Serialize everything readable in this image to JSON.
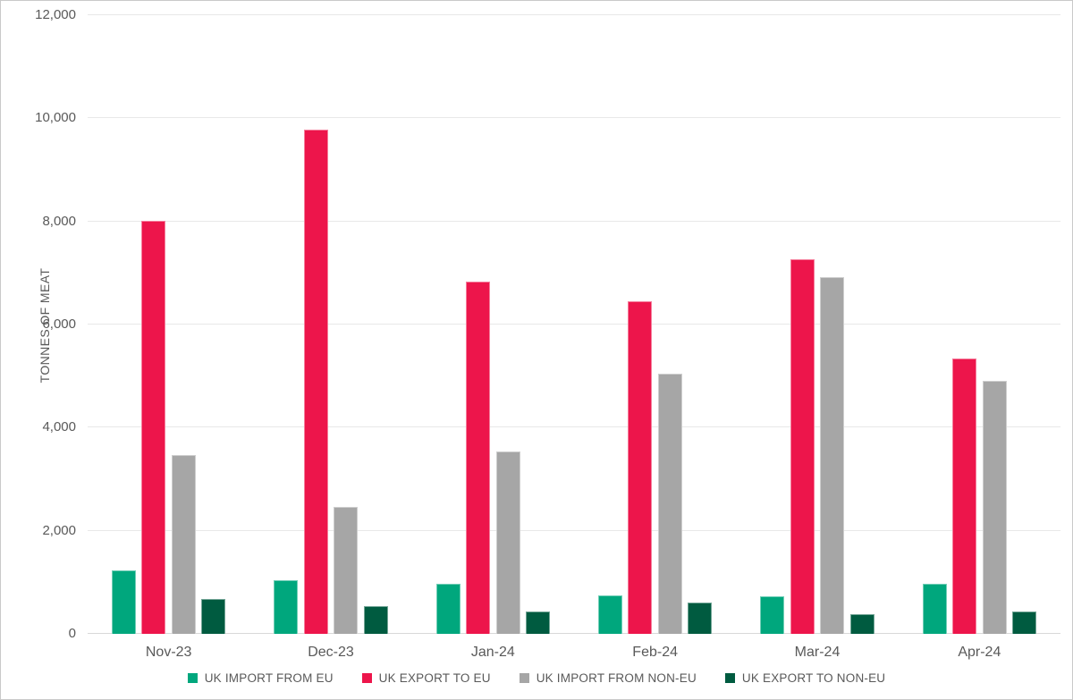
{
  "chart_data": {
    "type": "bar",
    "title": "",
    "xlabel": "",
    "ylabel": "TONNES OF MEAT",
    "ylim": [
      0,
      12000
    ],
    "ytick_step": 2000,
    "ytick_labels": [
      "0",
      "2,000",
      "4,000",
      "6,000",
      "8,000",
      "10,000",
      "12,000"
    ],
    "grid": true,
    "legend_position": "bottom",
    "categories": [
      "Nov-23",
      "Dec-23",
      "Jan-24",
      "Feb-24",
      "Mar-24",
      "Apr-24"
    ],
    "series": [
      {
        "name": "UK IMPORT FROM EU",
        "color": "#00A77D",
        "values": [
          1230,
          1040,
          980,
          750,
          720,
          970
        ]
      },
      {
        "name": "UK EXPORT TO EU",
        "color": "#ED154B",
        "values": [
          8020,
          9780,
          6840,
          6450,
          7270,
          5340
        ]
      },
      {
        "name": "UK IMPORT FROM NON-EU",
        "color": "#A6A6A6",
        "values": [
          3460,
          2460,
          3530,
          5040,
          6920,
          4900
        ]
      },
      {
        "name": "UK EXPORT TO NON-EU",
        "color": "#005B40",
        "values": [
          670,
          530,
          430,
          600,
          380,
          430
        ]
      }
    ]
  },
  "style": {
    "text_color": "#595959",
    "gridline_color": "#e8e8e8",
    "baseline_color": "#d8d8d8",
    "background": "#ffffff",
    "border_color": "#c9c9c9"
  }
}
